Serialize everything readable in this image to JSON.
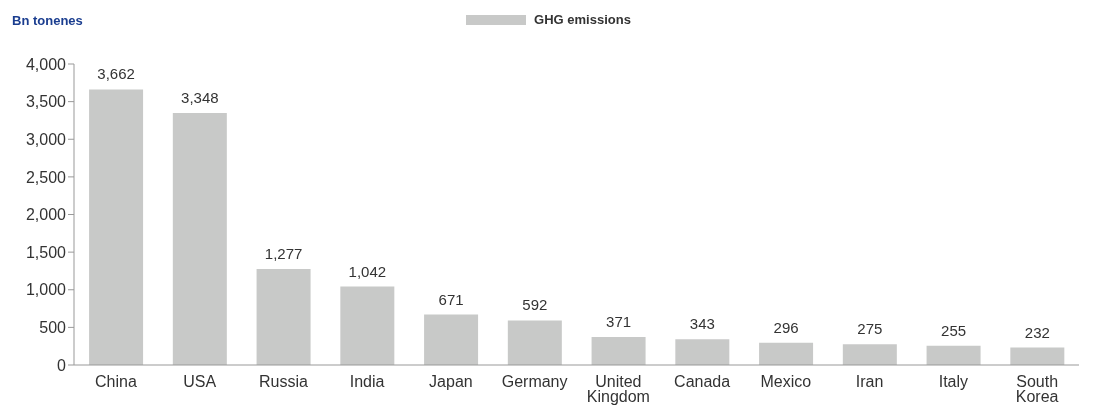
{
  "chart_data": {
    "type": "bar",
    "ylabel": "Bn tonenes",
    "categories": [
      "China",
      "USA",
      "Russia",
      "India",
      "Japan",
      "Germany",
      "United Kingdom",
      "Canada",
      "Mexico",
      "Iran",
      "Italy",
      "South Korea"
    ],
    "series": [
      {
        "name": "GHG emissions",
        "color": "#c8c9c8",
        "values": [
          3662,
          3348,
          1277,
          1042,
          671,
          592,
          371,
          343,
          296,
          275,
          255,
          232
        ],
        "value_labels": [
          "3,662",
          "3,348",
          "1,277",
          "1,042",
          "671",
          "592",
          "371",
          "343",
          "296",
          "275",
          "255",
          "232"
        ]
      }
    ],
    "ylim": [
      0,
      4000
    ],
    "yticks": [
      {
        "value": 0,
        "label": "0"
      },
      {
        "value": 500,
        "label": "500"
      },
      {
        "value": 1000,
        "label": "1,000"
      },
      {
        "value": 1500,
        "label": "1,500"
      },
      {
        "value": 2000,
        "label": "2,000"
      },
      {
        "value": 2500,
        "label": "2,500"
      },
      {
        "value": 3000,
        "label": "3,000"
      },
      {
        "value": 3500,
        "label": "3,500"
      },
      {
        "value": 4000,
        "label": "4,000"
      }
    ],
    "grid": false,
    "legend": "top"
  }
}
